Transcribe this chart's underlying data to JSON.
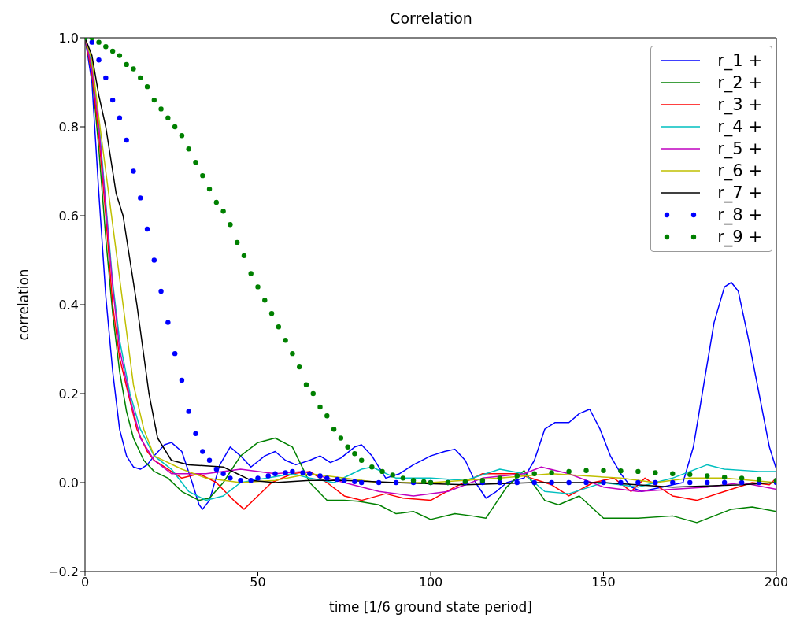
{
  "chart_data": {
    "type": "line",
    "title": "Correlation",
    "xlabel": "time [1/6 ground state period]",
    "ylabel": "correlation",
    "xlim": [
      0,
      200
    ],
    "xticks": [
      0,
      50,
      100,
      150,
      200
    ],
    "ylim": [
      -0.2,
      1.0
    ],
    "yticks": [
      {
        "value": -0.2,
        "label": "−0.2"
      },
      {
        "value": 0,
        "label": "0.0"
      },
      {
        "value": 0.2,
        "label": "0.2"
      },
      {
        "value": 0.4,
        "label": "0.4"
      },
      {
        "value": 0.6,
        "label": "0.6"
      },
      {
        "value": 0.8,
        "label": "0.8"
      },
      {
        "value": 1.0,
        "label": "1.0"
      }
    ],
    "grid": false,
    "legend": "top right",
    "line_style": "solid",
    "series": [
      {
        "name": "r_1 +",
        "color": "#0000ff",
        "x": [
          0,
          2,
          4,
          6,
          8,
          10,
          12,
          14,
          16,
          18,
          20,
          23,
          25,
          28,
          31,
          33,
          34,
          36,
          39,
          42,
          45,
          48,
          52,
          55,
          58,
          61,
          65,
          68,
          71,
          74,
          78,
          80,
          83,
          87,
          91,
          95,
          100,
          104,
          107,
          110,
          113,
          116,
          119,
          122,
          127,
          130,
          133,
          136,
          140,
          143,
          146,
          149,
          152,
          155,
          158,
          161,
          164,
          167,
          170,
          173,
          176,
          179,
          182,
          185,
          187,
          189,
          192,
          195,
          198,
          200
        ],
        "values": [
          1,
          0.9,
          0.65,
          0.42,
          0.25,
          0.12,
          0.06,
          0.035,
          0.03,
          0.04,
          0.06,
          0.085,
          0.09,
          0.07,
          0.0,
          -0.05,
          -0.06,
          -0.04,
          0.04,
          0.08,
          0.06,
          0.035,
          0.06,
          0.07,
          0.05,
          0.04,
          0.05,
          0.06,
          0.045,
          0.055,
          0.08,
          0.085,
          0.06,
          0.01,
          0.02,
          0.04,
          0.06,
          0.07,
          0.075,
          0.05,
          0.0,
          -0.035,
          -0.02,
          0.0,
          0.01,
          0.05,
          0.12,
          0.135,
          0.135,
          0.155,
          0.165,
          0.12,
          0.06,
          0.02,
          -0.01,
          -0.02,
          -0.015,
          -0.01,
          -0.005,
          0.0,
          0.08,
          0.22,
          0.36,
          0.44,
          0.45,
          0.43,
          0.32,
          0.2,
          0.08,
          0.03
        ]
      },
      {
        "name": "r_2 +",
        "color": "#008000",
        "x": [
          0,
          2,
          4,
          6,
          8,
          10,
          12,
          14,
          17,
          20,
          24,
          28,
          33,
          36,
          40,
          45,
          50,
          55,
          60,
          65,
          70,
          75,
          79,
          85,
          90,
          95,
          100,
          107,
          112,
          116,
          122,
          127,
          133,
          137,
          143,
          150,
          160,
          170,
          177,
          187,
          193,
          200
        ],
        "values": [
          1,
          0.92,
          0.75,
          0.55,
          0.38,
          0.25,
          0.16,
          0.1,
          0.05,
          0.025,
          0.01,
          -0.02,
          -0.04,
          -0.035,
          0.0,
          0.06,
          0.09,
          0.1,
          0.08,
          0.0,
          -0.04,
          -0.04,
          -0.042,
          -0.05,
          -0.07,
          -0.065,
          -0.083,
          -0.07,
          -0.075,
          -0.08,
          -0.01,
          0.027,
          -0.04,
          -0.05,
          -0.03,
          -0.08,
          -0.08,
          -0.075,
          -0.09,
          -0.06,
          -0.055,
          -0.065
        ]
      },
      {
        "name": "r_3 +",
        "color": "#ff0000",
        "x": [
          0,
          2,
          4,
          6,
          8,
          10,
          12.5,
          15,
          18,
          20,
          28,
          33,
          38,
          43,
          46,
          50,
          54,
          60,
          65,
          70,
          75,
          80,
          87,
          92,
          100,
          107,
          115,
          125,
          135,
          140,
          147,
          153,
          158,
          162,
          170,
          177,
          185,
          193,
          198,
          200
        ],
        "values": [
          1,
          0.92,
          0.78,
          0.6,
          0.4,
          0.28,
          0.2,
          0.12,
          0.07,
          0.05,
          0.01,
          0.02,
          0.0,
          -0.04,
          -0.06,
          -0.03,
          0.0,
          0.02,
          0.025,
          0.0,
          -0.03,
          -0.04,
          -0.025,
          -0.035,
          -0.04,
          -0.01,
          0.02,
          0.02,
          -0.005,
          -0.03,
          0.0,
          0.01,
          -0.02,
          0.01,
          -0.03,
          -0.04,
          -0.02,
          0.0,
          -0.005,
          0.01
        ]
      },
      {
        "name": "r_4 +",
        "color": "#00bfbf",
        "x": [
          0,
          2,
          4,
          6,
          8,
          10,
          13,
          16,
          20,
          25,
          30,
          35,
          40,
          45,
          60,
          65,
          72,
          80,
          83,
          90,
          100,
          110,
          120,
          127,
          133,
          140,
          150,
          160,
          170,
          180,
          185,
          195,
          200
        ],
        "values": [
          1,
          0.94,
          0.81,
          0.63,
          0.45,
          0.32,
          0.2,
          0.12,
          0.06,
          0.03,
          -0.02,
          -0.04,
          -0.03,
          0.0,
          0.02,
          0.01,
          0.0,
          0.03,
          0.035,
          0.01,
          0.01,
          0.005,
          0.03,
          0.02,
          -0.02,
          -0.025,
          0.0,
          -0.01,
          0.01,
          0.04,
          0.03,
          0.025,
          0.025
        ]
      },
      {
        "name": "r_5 +",
        "color": "#bf00bf",
        "x": [
          0,
          2,
          4,
          6,
          8,
          10,
          13,
          16,
          20,
          25,
          35,
          45,
          55,
          63,
          75,
          85,
          95,
          105,
          115,
          127,
          132,
          140,
          150,
          160,
          170,
          180,
          190,
          200
        ],
        "values": [
          1,
          0.93,
          0.8,
          0.62,
          0.44,
          0.3,
          0.19,
          0.1,
          0.05,
          0.02,
          0.02,
          0.03,
          0.02,
          0.025,
          0.0,
          -0.02,
          -0.03,
          -0.02,
          0.01,
          0.02,
          0.035,
          0.02,
          -0.01,
          -0.02,
          -0.015,
          -0.01,
          0.0,
          -0.015
        ]
      },
      {
        "name": "r_6 +",
        "color": "#bfbf00",
        "x": [
          0,
          2,
          4,
          6,
          8,
          11,
          14,
          17,
          20,
          28,
          35,
          45,
          55,
          65,
          75,
          85,
          100,
          120,
          135,
          145,
          155,
          165,
          175,
          185,
          200
        ],
        "values": [
          1,
          0.95,
          0.82,
          0.7,
          0.58,
          0.4,
          0.22,
          0.12,
          0.06,
          0.03,
          0.01,
          0.0,
          0.005,
          0.02,
          0.01,
          0.0,
          0.0,
          0.01,
          0.02,
          0.015,
          0.01,
          0.0,
          0.01,
          0.01,
          0.0
        ]
      },
      {
        "name": "r_7 +",
        "color": "#000000",
        "x": [
          0,
          2,
          4,
          6,
          9,
          11,
          15,
          18.5,
          21,
          25,
          30,
          40,
          48,
          55,
          65,
          75,
          90,
          110,
          130,
          150,
          170,
          190,
          200
        ],
        "values": [
          1,
          0.96,
          0.87,
          0.8,
          0.65,
          0.6,
          0.4,
          0.2,
          0.1,
          0.05,
          0.04,
          0.035,
          0.005,
          0.0,
          0.005,
          0.005,
          0.0,
          -0.005,
          0.0,
          0.0,
          -0.01,
          -0.005,
          0.0
        ]
      },
      {
        "name": "r_8 +",
        "type": "scatter",
        "marker": "circle",
        "color": "#0000ff",
        "x": [
          0,
          2,
          4,
          6,
          8,
          10,
          12,
          14,
          16,
          18,
          20,
          22,
          24,
          26,
          28,
          30,
          32,
          34,
          36,
          38,
          40,
          42,
          45,
          48,
          50,
          53,
          55,
          58,
          60,
          63,
          65,
          68,
          70,
          73,
          75,
          78,
          80,
          85,
          90,
          95,
          100,
          105,
          110,
          115,
          120,
          125,
          130,
          135,
          140,
          145,
          150,
          155,
          160,
          165,
          170,
          175,
          180,
          185,
          190,
          195,
          200
        ],
        "values": [
          1,
          0.99,
          0.95,
          0.91,
          0.86,
          0.82,
          0.77,
          0.7,
          0.64,
          0.57,
          0.5,
          0.43,
          0.36,
          0.29,
          0.23,
          0.16,
          0.11,
          0.07,
          0.05,
          0.03,
          0.02,
          0.01,
          0.005,
          0.005,
          0.01,
          0.015,
          0.02,
          0.022,
          0.025,
          0.022,
          0.02,
          0.015,
          0.01,
          0.007,
          0.005,
          0.002,
          0.0,
          0.0,
          0.0,
          0.0,
          0.0,
          0.0,
          0.0,
          0.0,
          0.0,
          0.0,
          0.0,
          0.0,
          0.0,
          0.0,
          0.0,
          0.0,
          0.0,
          0.0,
          0.0,
          0.0,
          0.0,
          0.0,
          0.0,
          0.0,
          0.0
        ]
      },
      {
        "name": "r_9 +",
        "type": "scatter",
        "marker": "circle",
        "color": "#008000",
        "x": [
          0,
          2,
          4,
          6,
          8,
          10,
          12,
          14,
          16,
          18,
          20,
          22,
          24,
          26,
          28,
          30,
          32,
          34,
          36,
          38,
          40,
          42,
          44,
          46,
          48,
          50,
          52,
          54,
          56,
          58,
          60,
          62,
          64,
          66,
          68,
          70,
          72,
          74,
          76,
          78,
          80,
          83,
          86,
          89,
          92,
          95,
          98,
          100,
          105,
          110,
          115,
          120,
          125,
          130,
          135,
          140,
          145,
          150,
          155,
          160,
          165,
          170,
          175,
          180,
          185,
          190,
          195,
          200
        ],
        "values": [
          1,
          1,
          0.99,
          0.98,
          0.97,
          0.96,
          0.94,
          0.93,
          0.91,
          0.89,
          0.86,
          0.84,
          0.82,
          0.8,
          0.78,
          0.75,
          0.72,
          0.69,
          0.66,
          0.63,
          0.61,
          0.58,
          0.54,
          0.51,
          0.47,
          0.44,
          0.41,
          0.38,
          0.35,
          0.32,
          0.29,
          0.26,
          0.22,
          0.2,
          0.17,
          0.15,
          0.12,
          0.1,
          0.08,
          0.065,
          0.05,
          0.035,
          0.025,
          0.017,
          0.01,
          0.005,
          0.002,
          0.0,
          0.0,
          0.002,
          0.005,
          0.01,
          0.015,
          0.02,
          0.022,
          0.025,
          0.027,
          0.027,
          0.026,
          0.025,
          0.022,
          0.02,
          0.018,
          0.015,
          0.012,
          0.01,
          0.007,
          0.005
        ]
      }
    ]
  }
}
